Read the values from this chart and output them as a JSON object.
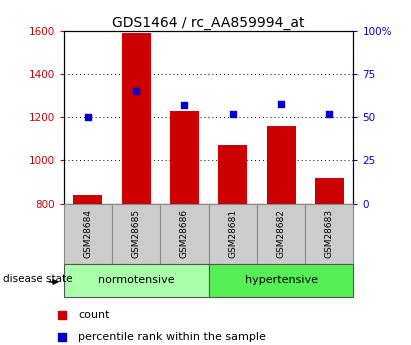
{
  "title": "GDS1464 / rc_AA859994_at",
  "samples": [
    "GSM28684",
    "GSM28685",
    "GSM28686",
    "GSM28681",
    "GSM28682",
    "GSM28683"
  ],
  "counts": [
    840,
    1590,
    1230,
    1070,
    1160,
    920
  ],
  "percentiles": [
    50,
    65,
    57,
    52,
    58,
    52
  ],
  "ylim_left": [
    800,
    1600
  ],
  "ylim_right": [
    0,
    100
  ],
  "yticks_left": [
    800,
    1000,
    1200,
    1400,
    1600
  ],
  "yticks_right": [
    0,
    25,
    50,
    75,
    100
  ],
  "ytick_labels_right": [
    "0",
    "25",
    "50",
    "75",
    "100%"
  ],
  "bar_color": "#cc0000",
  "square_color": "#0000cc",
  "groups": [
    {
      "label": "normotensive",
      "indices": [
        0,
        1,
        2
      ],
      "color": "#aaffaa"
    },
    {
      "label": "hypertensive",
      "indices": [
        3,
        4,
        5
      ],
      "color": "#55ee55"
    }
  ],
  "sample_box_color": "#cccccc",
  "legend_count_label": "count",
  "legend_percentile_label": "percentile rank within the sample",
  "disease_state_label": "disease state",
  "title_fontsize": 10,
  "tick_fontsize": 7.5,
  "label_fontsize": 8
}
